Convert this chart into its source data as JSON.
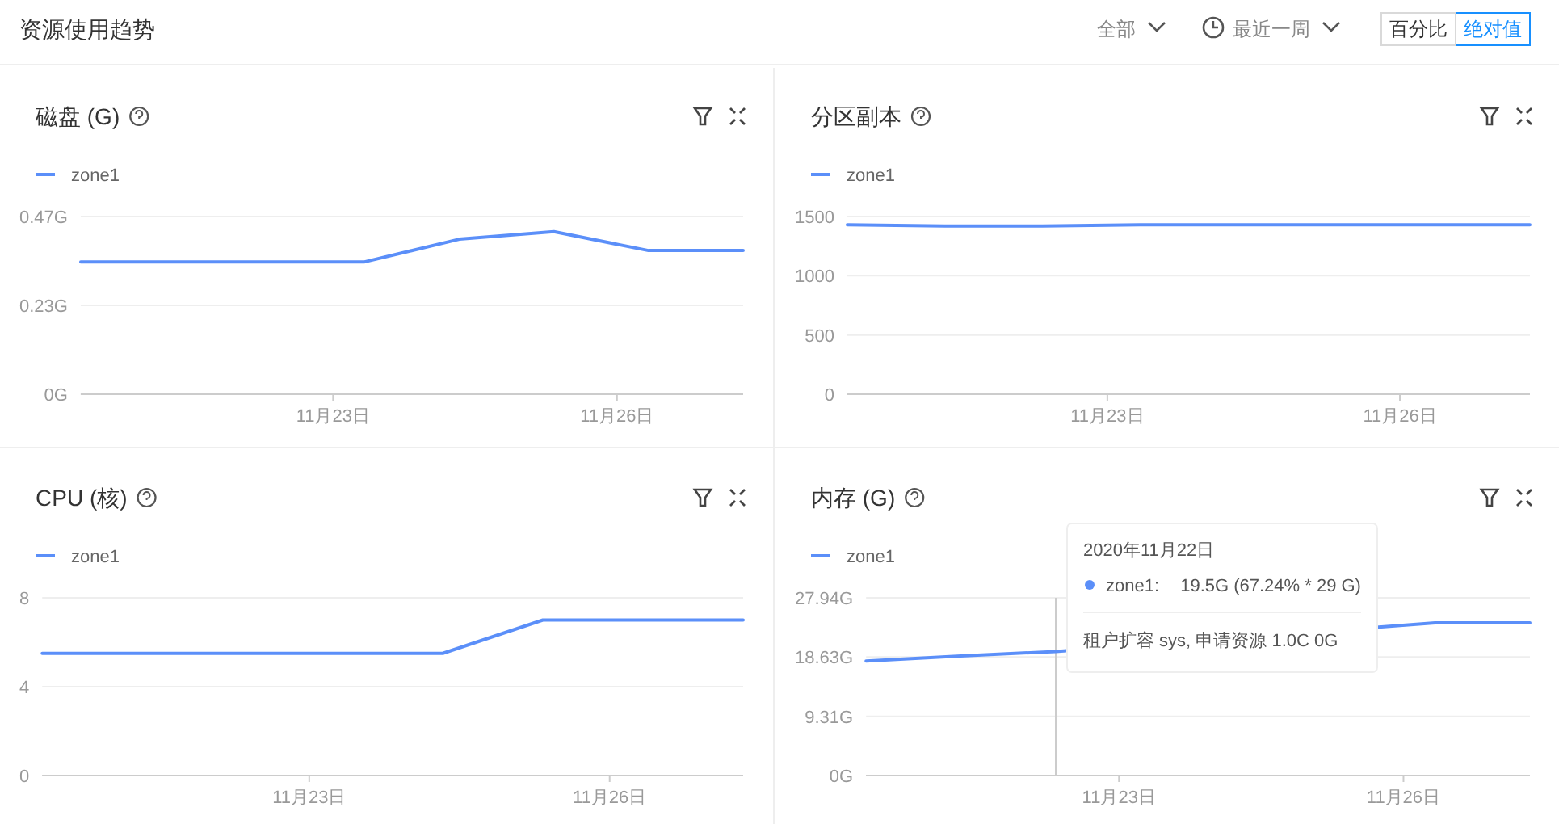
{
  "chart_data": [
    {
      "type": "other",
      "title": "资源使用趋势",
      "annotations": [
        "全部",
        "最近一周",
        "百分比",
        "绝对值"
      ]
    },
    {
      "type": "line",
      "title": "磁盘 (G)",
      "x": [
        "2020-11-20T08:00",
        "2020-11-21T08:00",
        "2020-11-22T08:00",
        "2020-11-23T08:00",
        "2020-11-24T08:00",
        "2020-11-25T08:00",
        "2020-11-26T08:00",
        "2020-11-27T08:00"
      ],
      "series": [
        {
          "name": "zone1",
          "color": "#5b8ff9",
          "values": [
            0.35,
            0.35,
            0.35,
            0.35,
            0.41,
            0.43,
            0.38,
            0.38
          ]
        }
      ],
      "xlim": [
        "2020-11-20T08:00",
        "2020-11-27T08:00"
      ],
      "xticks": [
        {
          "value": "2020-11-23",
          "label": "11月23日"
        },
        {
          "value": "2020-11-26",
          "label": "11月26日"
        }
      ],
      "ylim": [
        0,
        0.47
      ],
      "yticks": [
        {
          "value": 0,
          "label": "0G"
        },
        {
          "value": 0.235,
          "label": "0.23G"
        },
        {
          "value": 0.47,
          "label": "0.47G"
        }
      ],
      "grid": "y",
      "legend": "top left"
    },
    {
      "type": "line",
      "title": "分区副本",
      "x": [
        "2020-11-20T08:00",
        "2020-11-21T08:00",
        "2020-11-22T08:00",
        "2020-11-23T08:00",
        "2020-11-24T08:00",
        "2020-11-25T08:00",
        "2020-11-26T08:00",
        "2020-11-27T08:00"
      ],
      "series": [
        {
          "name": "zone1",
          "color": "#5b8ff9",
          "values": [
            1430,
            1420,
            1420,
            1430,
            1430,
            1430,
            1430,
            1430
          ]
        }
      ],
      "xlim": [
        "2020-11-20T08:00",
        "2020-11-27T08:00"
      ],
      "xticks": [
        {
          "value": "2020-11-23",
          "label": "11月23日"
        },
        {
          "value": "2020-11-26",
          "label": "11月26日"
        }
      ],
      "ylim": [
        0,
        1500
      ],
      "yticks": [
        0,
        500,
        1000,
        1500
      ],
      "grid": "y",
      "legend": "top left"
    },
    {
      "type": "line",
      "title": "CPU (核)",
      "x": [
        "2020-11-20T08:00",
        "2020-11-21T08:00",
        "2020-11-22T08:00",
        "2020-11-23T08:00",
        "2020-11-24T08:00",
        "2020-11-25T08:00",
        "2020-11-26T08:00",
        "2020-11-27T08:00"
      ],
      "series": [
        {
          "name": "zone1",
          "color": "#5b8ff9",
          "values": [
            5.5,
            5.5,
            5.5,
            5.5,
            5.5,
            7,
            7,
            7
          ]
        }
      ],
      "xlim": [
        "2020-11-20T08:00",
        "2020-11-27T08:00"
      ],
      "xticks": [
        {
          "value": "2020-11-23",
          "label": "11月23日"
        },
        {
          "value": "2020-11-26",
          "label": "11月26日"
        }
      ],
      "ylim": [
        0,
        8
      ],
      "yticks": [
        0,
        4,
        8
      ],
      "grid": "y",
      "legend": "top left"
    },
    {
      "type": "line",
      "title": "内存 (G)",
      "series": [
        {
          "name": "zone1",
          "color": "#5b8ff9",
          "x": [
            "2020-11-20T08:00",
            "2020-11-21T08:00",
            "2020-11-22T08:00",
            "2020-11-26T08:00",
            "2020-11-27T08:00"
          ],
          "values": [
            18.0,
            18.8,
            19.5,
            24.0,
            24.0
          ]
        }
      ],
      "xlim": [
        "2020-11-20T08:00",
        "2020-11-27T08:00"
      ],
      "xticks": [
        {
          "value": "2020-11-23",
          "label": "11月23日"
        },
        {
          "value": "2020-11-26",
          "label": "11月26日"
        }
      ],
      "ylim": [
        0,
        27.94
      ],
      "yticks": [
        {
          "value": 0,
          "label": "0G"
        },
        {
          "value": 9.31,
          "label": "9.31G"
        },
        {
          "value": 18.63,
          "label": "18.63G"
        },
        {
          "value": 27.94,
          "label": "27.94G"
        }
      ],
      "grid": "y",
      "legend": "top left",
      "ref_lines": [
        {
          "axis": "x",
          "value": "2020-11-22T08:00",
          "color": "#cccccc"
        }
      ],
      "annotations": [
        "2020年11月22日",
        "zone1:",
        "19.5G (67.24% * 29 G)",
        "租户扩容 sys, 申请资源 1.0C 0G"
      ]
    }
  ]
}
